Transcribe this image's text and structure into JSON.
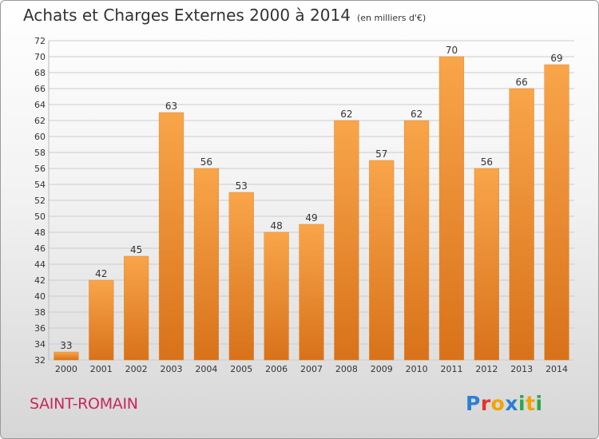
{
  "title": "Achats et Charges Externes 2000 à 2014",
  "unit_note": "(en milliers d'€)",
  "commune": "SAINT-ROMAIN",
  "logo": {
    "text": "Proxiti",
    "letter_colors": [
      "#2b7fd4",
      "#e5322d",
      "#f2a400",
      "#2b7fd4",
      "#2aa84a",
      "#f2a400",
      "#2aa84a"
    ]
  },
  "colors": {
    "bar_light": "#f9a54a",
    "bar_dark": "#d8721a",
    "grid": "#cccccc",
    "axis_text": "#333333"
  },
  "chart_data": {
    "type": "bar",
    "title": "Achats et Charges Externes 2000 à 2014",
    "categories": [
      "2000",
      "2001",
      "2002",
      "2003",
      "2004",
      "2005",
      "2006",
      "2007",
      "2008",
      "2009",
      "2010",
      "2011",
      "2012",
      "2013",
      "2014"
    ],
    "values": [
      33,
      42,
      45,
      63,
      56,
      53,
      48,
      49,
      62,
      57,
      62,
      70,
      56,
      66,
      69
    ],
    "ylim": [
      32,
      72
    ],
    "ytick_step": 2,
    "grid": true,
    "data_labels": true,
    "xlabel": "",
    "ylabel": ""
  }
}
